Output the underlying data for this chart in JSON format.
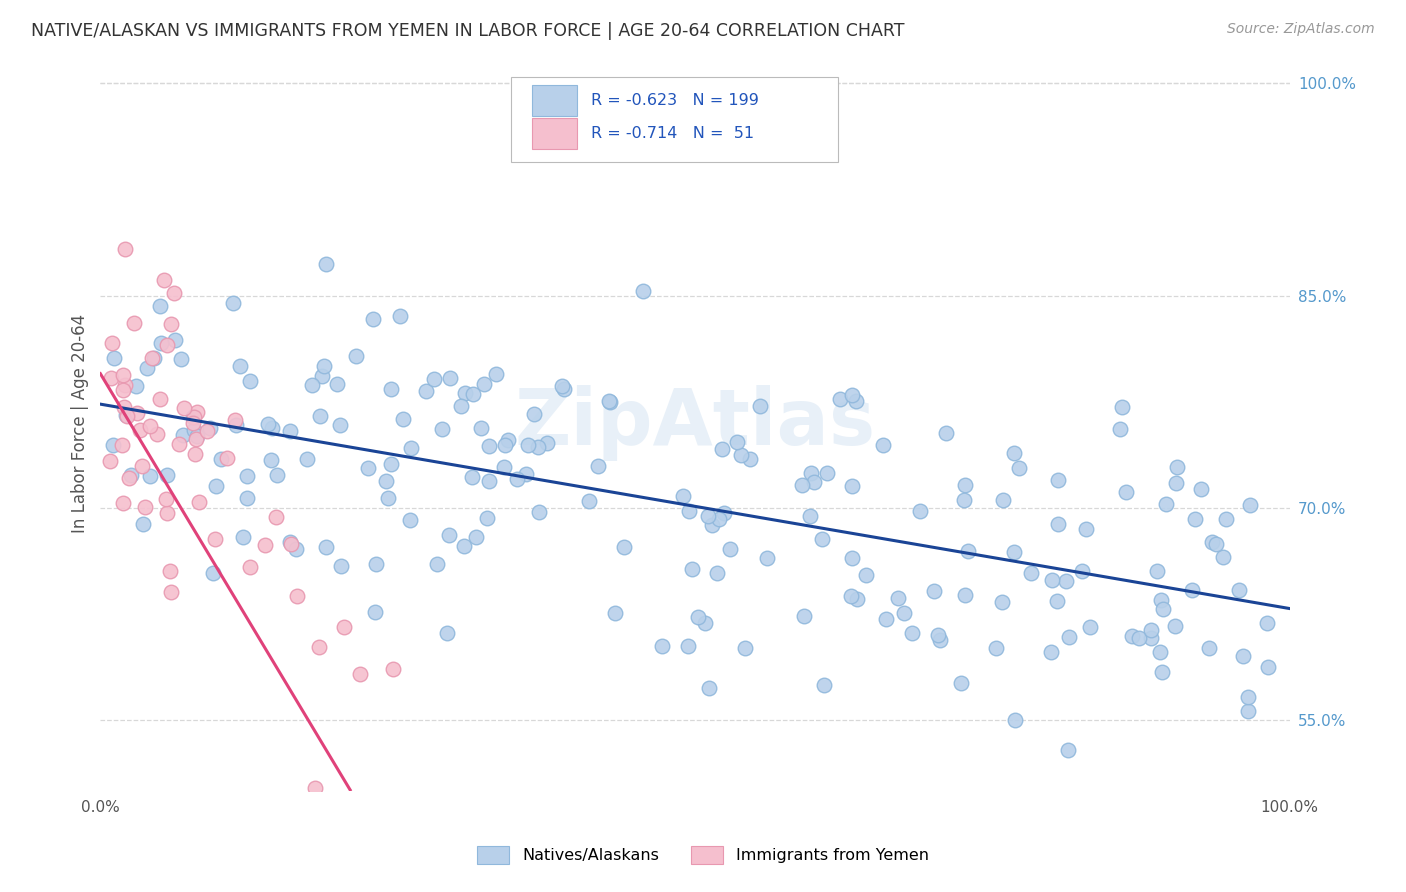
{
  "title": "NATIVE/ALASKAN VS IMMIGRANTS FROM YEMEN IN LABOR FORCE | AGE 20-64 CORRELATION CHART",
  "source": "Source: ZipAtlas.com",
  "ylabel": "In Labor Force | Age 20-64",
  "xlim": [
    0.0,
    1.0
  ],
  "ylim": [
    0.5,
    1.02
  ],
  "yticks": [
    0.55,
    0.7,
    0.85,
    1.0
  ],
  "ytick_labels": [
    "55.0%",
    "70.0%",
    "85.0%",
    "100.0%"
  ],
  "legend_r_blue": "-0.623",
  "legend_n_blue": "199",
  "legend_r_pink": "-0.714",
  "legend_n_pink": "51",
  "blue_color": "#b8d0ea",
  "pink_color": "#f5bfce",
  "blue_edge_color": "#90b8dc",
  "pink_edge_color": "#e898b0",
  "blue_line_color": "#1a4496",
  "pink_line_color": "#e0427a",
  "pink_dash_color": "#d8a0b8",
  "watermark": "ZipAtlas",
  "background_color": "#ffffff",
  "grid_color": "#d8d8d8",
  "title_color": "#333333",
  "right_tick_color": "#5599cc",
  "legend_text_color": "#2255bb"
}
